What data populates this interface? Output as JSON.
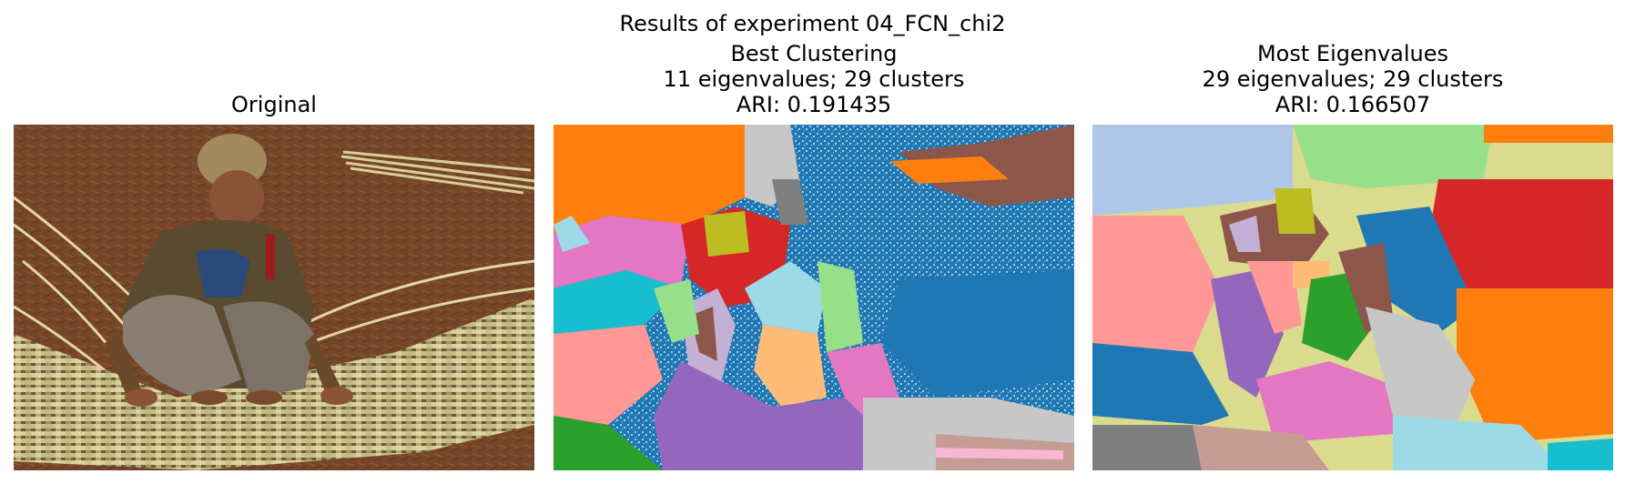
{
  "figure": {
    "suptitle": "Results of experiment 04_FCN_chi2"
  },
  "panels": [
    {
      "title_lines": [
        "Original"
      ],
      "content": "photograph: man weaving bamboo strips on ground covered with pine needles"
    },
    {
      "title_lines": [
        "Best Clustering",
        "11 eigenvalues; 29 clusters",
        "ARI: 0.191435"
      ],
      "content": "segmentation label map"
    },
    {
      "title_lines": [
        "Most Eigenvalues",
        "29 eigenvalues; 29 clusters",
        "ARI: 0.166507"
      ],
      "content": "segmentation label map"
    }
  ],
  "palette": {
    "tab_blue": "#1f77b4",
    "tab_orange": "#ff7f0e",
    "tab_green": "#2ca02c",
    "tab_red": "#d62728",
    "tab_purple": "#9467bd",
    "tab_brown": "#8c564b",
    "tab_pink": "#e377c2",
    "tab_gray": "#7f7f7f",
    "tab_olive": "#bcbd22",
    "tab_cyan": "#17becf",
    "light_blue": "#aec7e8",
    "light_orange": "#ffbb78",
    "light_green": "#98df8a",
    "light_red": "#ff9896",
    "light_purple": "#c5b0d5",
    "light_brown": "#c49c94",
    "light_pink": "#f7b6d2",
    "light_gray": "#c7c7c7",
    "light_olive": "#dbdb8d",
    "light_cyan": "#9edae5"
  }
}
